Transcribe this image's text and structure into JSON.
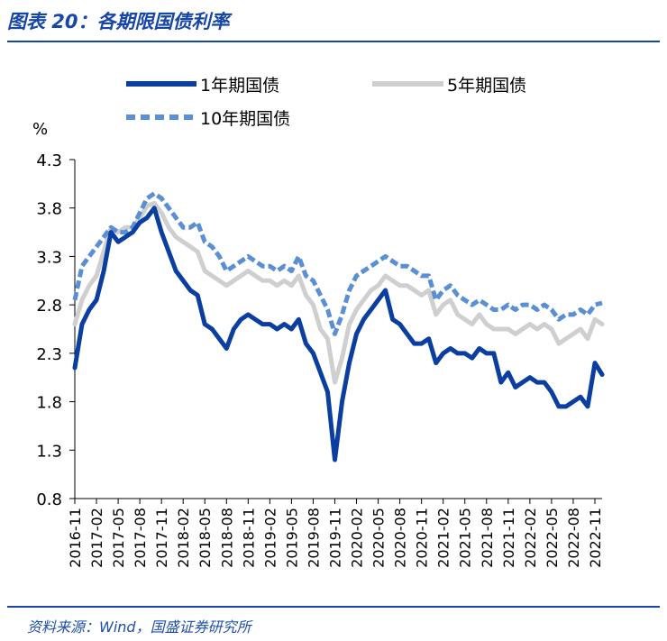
{
  "figure": {
    "title": "图表 20：各期限国债利率",
    "source": "资料来源：Wind，国盛证券研究所"
  },
  "colors": {
    "accent": "#1747a6",
    "series_1y": "#0a3ea0",
    "series_5y": "#cfcfcf",
    "series_10y": "#5a8fd4"
  },
  "chart_data": {
    "type": "line",
    "title": "各期限国债利率",
    "ylabel": "%",
    "xlabel": "",
    "ylim": [
      0.8,
      4.3
    ],
    "yticks": [
      0.8,
      1.3,
      1.8,
      2.3,
      2.8,
      3.3,
      3.8,
      4.3
    ],
    "ytick_labels": [
      "0.8",
      "1.3",
      "1.8",
      "2.3",
      "2.8",
      "3.3",
      "3.8",
      "4.3"
    ],
    "xticks": [
      "2016-11",
      "2017-02",
      "2017-05",
      "2017-08",
      "2017-11",
      "2018-02",
      "2018-05",
      "2018-08",
      "2018-11",
      "2019-02",
      "2019-05",
      "2019-08",
      "2019-11",
      "2020-02",
      "2020-05",
      "2020-08",
      "2020-11",
      "2021-02",
      "2021-05",
      "2021-08",
      "2021-11",
      "2022-02",
      "2022-05",
      "2022-08",
      "2022-11"
    ],
    "x_start": "2016-11",
    "x_end": "2022-12",
    "legend": [
      "1年期国债",
      "5年期国债",
      "10年期国债"
    ],
    "legend_position": "top",
    "series": [
      {
        "name": "1年期国债",
        "style": "solid-thick",
        "x": [
          0,
          1,
          2,
          3,
          4,
          5,
          6,
          7,
          8,
          9,
          10,
          11,
          12,
          13,
          14,
          15,
          16,
          17,
          18,
          19,
          20,
          21,
          22,
          23,
          24,
          25,
          26,
          27,
          28,
          29,
          30,
          31,
          32,
          33,
          34,
          35,
          36,
          37,
          38,
          39,
          40,
          41,
          42,
          43,
          44,
          45,
          46,
          47,
          48,
          49,
          50,
          51,
          52,
          53,
          54,
          55,
          56,
          57,
          58,
          59,
          60,
          61,
          62,
          63,
          64,
          65,
          66,
          67,
          68,
          69,
          70,
          71,
          72,
          73
        ],
        "values": [
          2.15,
          2.6,
          2.75,
          2.85,
          3.15,
          3.55,
          3.45,
          3.5,
          3.55,
          3.65,
          3.7,
          3.8,
          3.55,
          3.35,
          3.15,
          3.05,
          2.95,
          2.9,
          2.6,
          2.55,
          2.45,
          2.35,
          2.55,
          2.65,
          2.7,
          2.65,
          2.6,
          2.6,
          2.55,
          2.6,
          2.55,
          2.65,
          2.4,
          2.3,
          2.1,
          1.9,
          1.2,
          1.8,
          2.2,
          2.5,
          2.65,
          2.75,
          2.85,
          2.95,
          2.65,
          2.6,
          2.5,
          2.4,
          2.4,
          2.45,
          2.2,
          2.3,
          2.35,
          2.3,
          2.3,
          2.25,
          2.35,
          2.3,
          2.3,
          2.0,
          2.1,
          1.95,
          2.0,
          2.05,
          2.0,
          2.0,
          1.9,
          1.75,
          1.75,
          1.8,
          1.85,
          1.75,
          2.2,
          2.08
        ]
      },
      {
        "name": "5年期国债",
        "style": "solid-light",
        "x": [
          0,
          1,
          2,
          3,
          4,
          5,
          6,
          7,
          8,
          9,
          10,
          11,
          12,
          13,
          14,
          15,
          16,
          17,
          18,
          19,
          20,
          21,
          22,
          23,
          24,
          25,
          26,
          27,
          28,
          29,
          30,
          31,
          32,
          33,
          34,
          35,
          36,
          37,
          38,
          39,
          40,
          41,
          42,
          43,
          44,
          45,
          46,
          47,
          48,
          49,
          50,
          51,
          52,
          53,
          54,
          55,
          56,
          57,
          58,
          59,
          60,
          61,
          62,
          63,
          64,
          65,
          66,
          67,
          68,
          69,
          70,
          71,
          72,
          73
        ],
        "values": [
          2.6,
          2.85,
          3.0,
          3.1,
          3.35,
          3.6,
          3.55,
          3.6,
          3.6,
          3.7,
          3.82,
          3.85,
          3.75,
          3.6,
          3.5,
          3.45,
          3.4,
          3.35,
          3.15,
          3.1,
          3.05,
          3.0,
          3.05,
          3.1,
          3.15,
          3.1,
          3.05,
          3.05,
          3.0,
          3.05,
          3.0,
          3.1,
          2.9,
          2.8,
          2.55,
          2.45,
          2.0,
          2.25,
          2.6,
          2.75,
          2.85,
          2.95,
          3.0,
          3.1,
          3.05,
          3.0,
          3.0,
          2.95,
          2.9,
          2.95,
          2.7,
          2.8,
          2.85,
          2.7,
          2.65,
          2.6,
          2.7,
          2.6,
          2.55,
          2.55,
          2.55,
          2.5,
          2.55,
          2.6,
          2.55,
          2.6,
          2.55,
          2.4,
          2.45,
          2.5,
          2.55,
          2.45,
          2.65,
          2.6
        ]
      },
      {
        "name": "10年期国债",
        "style": "dashed",
        "x": [
          0,
          1,
          2,
          3,
          4,
          5,
          6,
          7,
          8,
          9,
          10,
          11,
          12,
          13,
          14,
          15,
          16,
          17,
          18,
          19,
          20,
          21,
          22,
          23,
          24,
          25,
          26,
          27,
          28,
          29,
          30,
          31,
          32,
          33,
          34,
          35,
          36,
          37,
          38,
          39,
          40,
          41,
          42,
          43,
          44,
          45,
          46,
          47,
          48,
          49,
          50,
          51,
          52,
          53,
          54,
          55,
          56,
          57,
          58,
          59,
          60,
          61,
          62,
          63,
          64,
          65,
          66,
          67,
          68,
          69,
          70,
          71,
          72,
          73
        ],
        "values": [
          2.85,
          3.2,
          3.3,
          3.4,
          3.5,
          3.6,
          3.55,
          3.55,
          3.6,
          3.75,
          3.9,
          3.95,
          3.9,
          3.8,
          3.7,
          3.6,
          3.6,
          3.65,
          3.45,
          3.4,
          3.3,
          3.15,
          3.2,
          3.25,
          3.3,
          3.25,
          3.2,
          3.2,
          3.15,
          3.2,
          3.15,
          3.3,
          3.1,
          3.05,
          2.9,
          2.75,
          2.5,
          2.7,
          2.95,
          3.1,
          3.15,
          3.2,
          3.25,
          3.3,
          3.25,
          3.2,
          3.2,
          3.15,
          3.1,
          3.1,
          2.85,
          2.95,
          3.0,
          2.9,
          2.85,
          2.8,
          2.85,
          2.8,
          2.75,
          2.75,
          2.8,
          2.75,
          2.8,
          2.8,
          2.75,
          2.8,
          2.75,
          2.65,
          2.7,
          2.7,
          2.75,
          2.7,
          2.8,
          2.82
        ]
      }
    ]
  }
}
